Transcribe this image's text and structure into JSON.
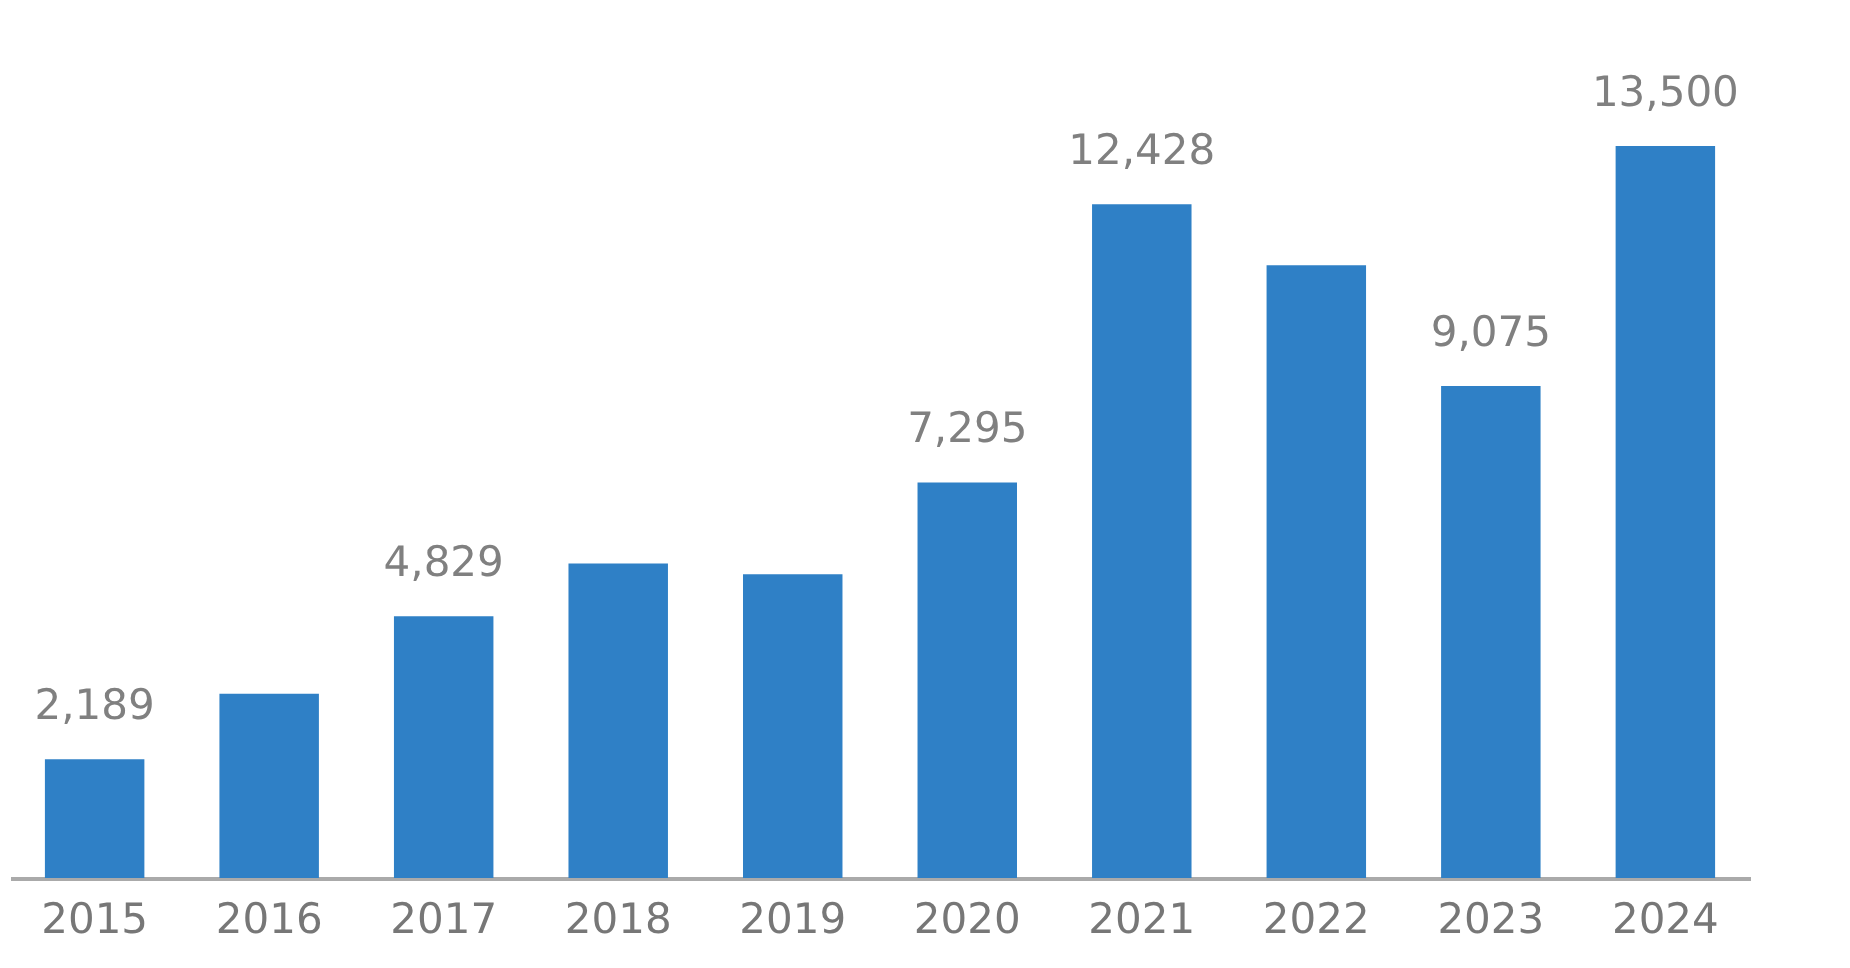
{
  "chart_data": {
    "type": "bar",
    "categories": [
      "2015",
      "2016",
      "2017",
      "2018",
      "2019",
      "2020",
      "2021",
      "2022",
      "2023",
      "2024"
    ],
    "values": [
      2189,
      3400,
      4829,
      5800,
      5600,
      7295,
      12428,
      11300,
      9075,
      13500
    ],
    "value_labels": [
      "2,189",
      null,
      "4,829",
      null,
      null,
      "7,295",
      "12,428",
      null,
      "9,075",
      "13,500"
    ],
    "color": "#2f80c6"
  }
}
